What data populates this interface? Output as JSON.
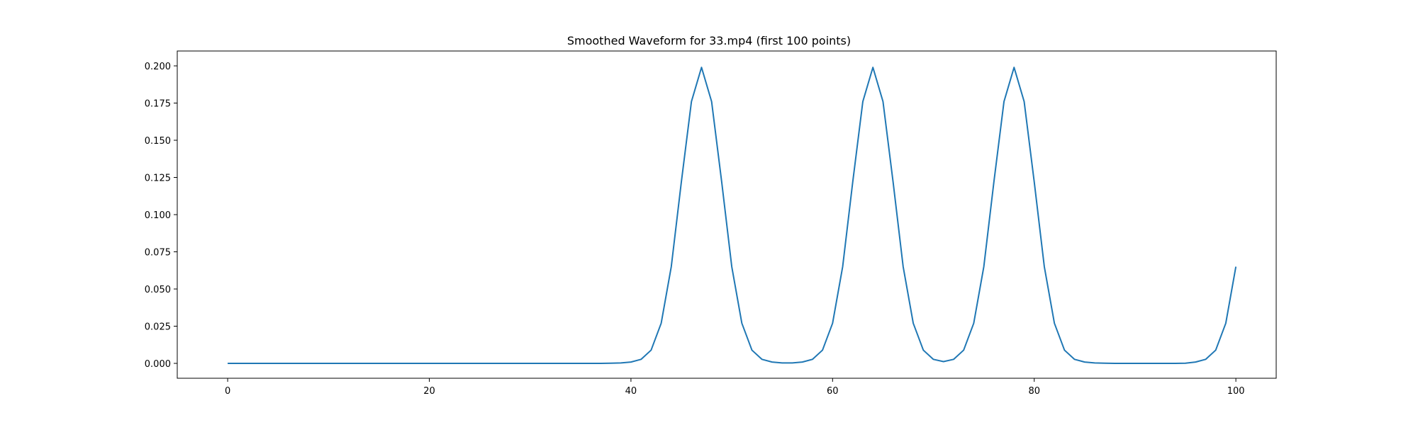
{
  "chart_data": {
    "type": "line",
    "title": "Smoothed Waveform for 33.mp4 (first 100 points)",
    "xlabel": "",
    "ylabel": "",
    "xlim": [
      -5,
      104
    ],
    "ylim": [
      -0.01,
      0.21
    ],
    "x_ticks": [
      0,
      20,
      40,
      60,
      80,
      100
    ],
    "x_tick_labels": [
      "0",
      "20",
      "40",
      "60",
      "80",
      "100"
    ],
    "y_ticks": [
      0.0,
      0.025,
      0.05,
      0.075,
      0.1,
      0.125,
      0.15,
      0.175,
      0.2
    ],
    "y_tick_labels": [
      "0.000",
      "0.025",
      "0.050",
      "0.075",
      "0.100",
      "0.125",
      "0.150",
      "0.175",
      "0.200"
    ],
    "grid": false,
    "line_color": "#1f77b4",
    "series": [
      {
        "values": [
          0,
          0,
          0,
          0,
          0,
          0,
          0,
          0,
          0,
          0,
          0,
          0,
          0,
          0,
          0,
          0,
          0,
          0,
          0,
          0,
          0,
          0,
          0,
          0,
          0,
          0,
          0,
          0,
          0,
          0,
          0,
          0,
          0,
          0,
          0,
          0,
          0,
          0,
          0.0001,
          0.0003,
          0.0009,
          0.0027,
          0.0089,
          0.027,
          0.065,
          0.122,
          0.176,
          0.199,
          0.176,
          0.122,
          0.065,
          0.027,
          0.0089,
          0.0027,
          0.0009,
          0.0003,
          0.0003,
          0.0009,
          0.0027,
          0.0089,
          0.027,
          0.065,
          0.122,
          0.176,
          0.199,
          0.176,
          0.122,
          0.065,
          0.027,
          0.0089,
          0.0027,
          0.0012,
          0.0027,
          0.0089,
          0.027,
          0.065,
          0.122,
          0.176,
          0.199,
          0.176,
          0.122,
          0.065,
          0.027,
          0.0089,
          0.0027,
          0.0009,
          0.0003,
          0.0001,
          0,
          0,
          0,
          0,
          0,
          0,
          0,
          0.0001,
          0.0009,
          0.0027,
          0.0089,
          0.027,
          0.065
        ]
      }
    ]
  }
}
